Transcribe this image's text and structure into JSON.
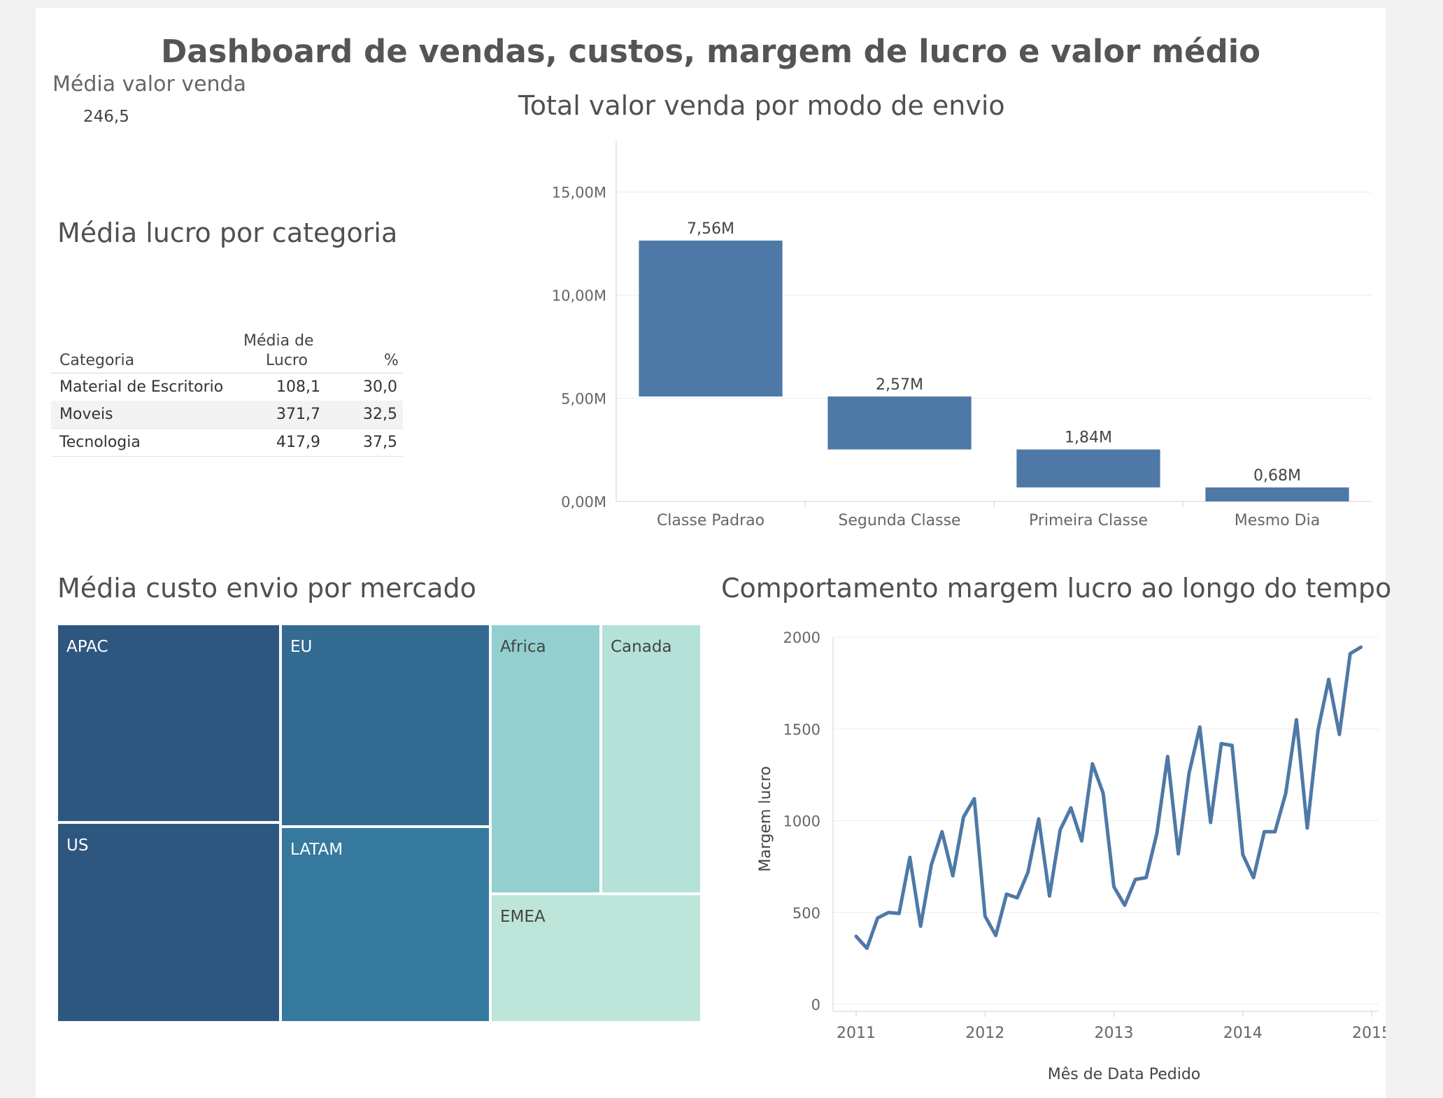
{
  "dashboard": {
    "title": "Dashboard de vendas, custos, margem de lucro e valor médio"
  },
  "kpi": {
    "title": "Média valor venda",
    "value": "246,5"
  },
  "profit_table": {
    "title": "Média lucro por categoria",
    "headers": {
      "category": "Categoria",
      "avg_line1": "Média de",
      "avg_line2": "Lucro",
      "pct": "%"
    },
    "rows": [
      {
        "category": "Material de Escritorio",
        "avg": "108,1",
        "pct": "30,0"
      },
      {
        "category": "Moveis",
        "avg": "371,7",
        "pct": "32,5"
      },
      {
        "category": "Tecnologia",
        "avg": "417,9",
        "pct": "37,5"
      }
    ]
  },
  "shipping_chart": {
    "title": "Total valor venda por modo de envio"
  },
  "treemap": {
    "title": "Média custo envio por mercado",
    "markets": [
      "APAC",
      "EU",
      "Africa",
      "Canada",
      "US",
      "LATAM",
      "EMEA"
    ]
  },
  "trend_chart": {
    "title": "Comportamento margem lucro ao longo do tempo",
    "xlabel": "Mês de Data Pedido",
    "ylabel": "Margem lucro"
  },
  "colors": {
    "bar": "#4e79a7",
    "line": "#4e79a7"
  },
  "chart_data": [
    {
      "type": "bar",
      "subtype": "waterfall",
      "title": "Total valor venda por modo de envio",
      "categories": [
        "Classe Padrao",
        "Segunda Classe",
        "Primeira Classe",
        "Mesmo Dia"
      ],
      "values": [
        7.56,
        2.57,
        1.84,
        0.68
      ],
      "data_labels": [
        "7,56M",
        "2,57M",
        "1,84M",
        "0,68M"
      ],
      "ylim": [
        0,
        17.5
      ],
      "yticks": [
        0,
        5,
        10,
        15
      ],
      "ytick_labels": [
        "0,00M",
        "5,00M",
        "10,00M",
        "15,00M"
      ],
      "grid": true
    },
    {
      "type": "line",
      "title": "Comportamento margem lucro ao longo do tempo",
      "xlabel": "Mês de Data Pedido",
      "ylabel": "Margem lucro",
      "x_start": "2011-01",
      "x_step": "month",
      "values": [
        370,
        305,
        470,
        500,
        495,
        800,
        425,
        760,
        940,
        700,
        1020,
        1120,
        480,
        375,
        600,
        580,
        720,
        1010,
        590,
        950,
        1070,
        890,
        1310,
        1150,
        640,
        540,
        680,
        690,
        930,
        1350,
        820,
        1260,
        1510,
        990,
        1420,
        1410,
        815,
        690,
        940,
        940,
        1150,
        1550,
        960,
        1490,
        1770,
        1470,
        1910,
        1945
      ],
      "xticks": [
        "2011",
        "2012",
        "2013",
        "2014",
        "2015"
      ],
      "ylim": [
        0,
        2000
      ],
      "yticks": [
        0,
        500,
        1000,
        1500,
        2000
      ],
      "grid": true
    },
    {
      "type": "treemap",
      "title": "Média custo envio por mercado",
      "categories": [
        "APAC",
        "EU",
        "Africa",
        "Canada",
        "US",
        "LATAM",
        "EMEA"
      ],
      "colors": [
        "#2e5780",
        "#336b93",
        "#93cfcf",
        "#b4e2d8",
        "#2e5780",
        "#35799e",
        "#bde5d9"
      ]
    }
  ]
}
